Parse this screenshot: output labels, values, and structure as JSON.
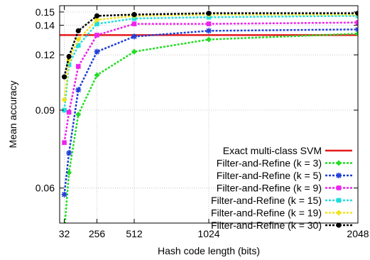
{
  "chart_data": {
    "type": "line",
    "title": "",
    "xlabel": "Hash code length (bits)",
    "ylabel": "Mean accuracy",
    "xlim": [
      0,
      2048
    ],
    "ylim": [
      0.05,
      0.155
    ],
    "y_scale": "log",
    "x_ticks": [
      32,
      256,
      512,
      1024,
      2048
    ],
    "y_ticks": [
      0.06,
      0.09,
      0.12,
      0.14,
      0.15
    ],
    "y_tick_labels": [
      "0.06",
      "0.09",
      "0.12",
      "0.14",
      "0.15"
    ],
    "grid": true,
    "legend_position": "bottom-right",
    "reference_line": {
      "name": "Exact multi-class SVM",
      "value": 0.133,
      "color": "#e41a1c"
    },
    "x": [
      32,
      64,
      128,
      256,
      512,
      1024,
      2048
    ],
    "series": [
      {
        "name": "Filter-and-Refine (k = 3)",
        "color": "#22dd22",
        "marker": "diamond",
        "values": [
          0.048,
          0.065,
          0.088,
          0.108,
          0.122,
          0.13,
          0.134
        ]
      },
      {
        "name": "Filter-and-Refine (k = 5)",
        "color": "#1f3fd6",
        "marker": "star",
        "values": [
          0.058,
          0.072,
          0.1,
          0.122,
          0.132,
          0.136,
          0.137
        ]
      },
      {
        "name": "Filter-and-Refine (k = 9)",
        "color": "#ee22ee",
        "marker": "square",
        "values": [
          0.076,
          0.089,
          0.113,
          0.133,
          0.141,
          0.141,
          0.142
        ]
      },
      {
        "name": "Filter-and-Refine (k = 15)",
        "color": "#22dddd",
        "marker": "square",
        "values": [
          0.09,
          0.114,
          0.126,
          0.141,
          0.145,
          0.146,
          0.147
        ]
      },
      {
        "name": "Filter-and-Refine (k = 19)",
        "color": "#f0e21a",
        "marker": "diamond",
        "values": [
          0.095,
          0.117,
          0.13,
          0.144,
          0.147,
          0.148,
          0.148
        ]
      },
      {
        "name": "Filter-and-Refine (k = 30)",
        "color": "#000000",
        "marker": "circle",
        "values": [
          0.107,
          0.119,
          0.136,
          0.147,
          0.148,
          0.149,
          0.149
        ]
      }
    ]
  }
}
